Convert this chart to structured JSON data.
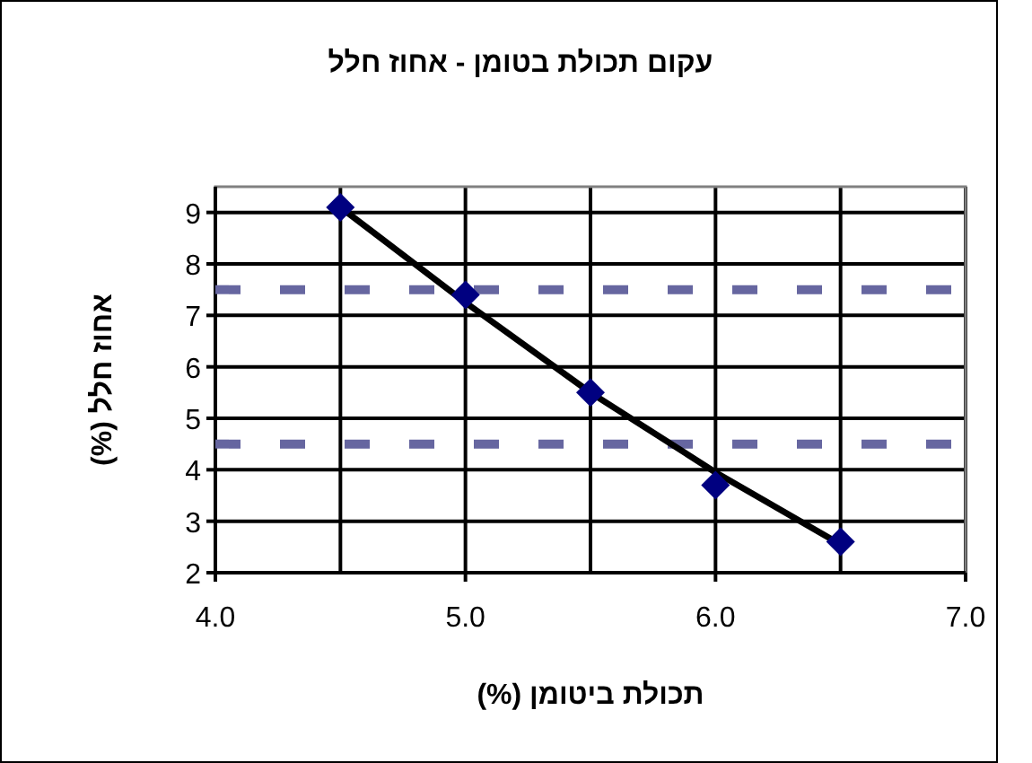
{
  "chart_data": {
    "type": "scatter",
    "title": "עקום תכולת בטומן - אחוז חלל",
    "xlabel": "תכולת ביטומן (%)",
    "ylabel": "אחוז חלל (%)",
    "x": [
      4.5,
      5.0,
      5.5,
      6.0,
      6.5
    ],
    "series": [
      {
        "type": "line",
        "color": "#000000",
        "marker": "none",
        "line_style": "solid",
        "x": [
          4.5,
          5.0,
          5.5,
          6.0,
          6.5
        ],
        "values": [
          9.1,
          7.25,
          5.5,
          3.95,
          2.55
        ]
      },
      {
        "color": "#000080",
        "marker": "diamond",
        "values": [
          9.1,
          7.4,
          5.5,
          3.7,
          2.6
        ]
      }
    ],
    "xlim": [
      4.0,
      7.0
    ],
    "xticks": [
      {
        "value": 4.0,
        "label": "4.0"
      },
      {
        "value": 4.5,
        "label": null
      },
      {
        "value": 5.0,
        "label": "5.0"
      },
      {
        "value": 5.5,
        "label": null
      },
      {
        "value": 6.0,
        "label": "6.0"
      },
      {
        "value": 6.5,
        "label": null
      },
      {
        "value": 7.0,
        "label": "7.0"
      }
    ],
    "ylim": [
      2,
      9.5
    ],
    "yticks": [
      2,
      3,
      4,
      5,
      6,
      7,
      8,
      9
    ],
    "grid": true,
    "ref_lines": [
      {
        "axis": "y",
        "value": 7.5,
        "color": "#6666a0",
        "line_style": "dashed"
      },
      {
        "axis": "y",
        "value": 4.5,
        "color": "#6666a0",
        "line_style": "dashed"
      }
    ]
  }
}
